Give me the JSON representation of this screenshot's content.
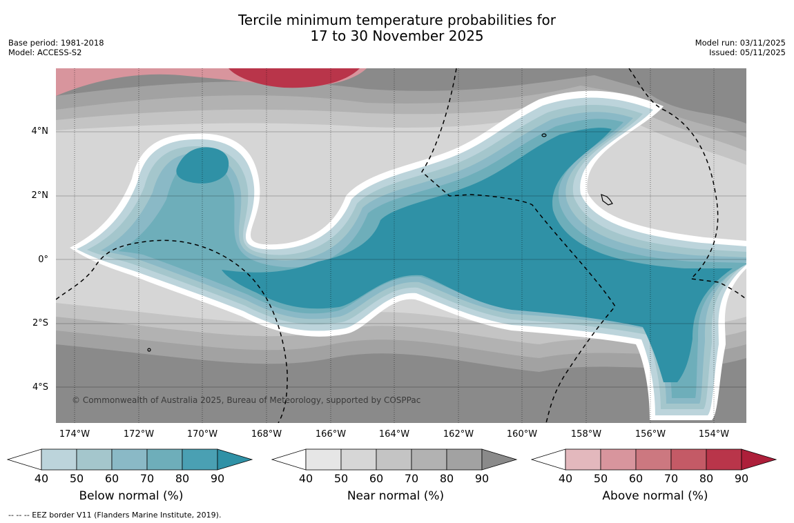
{
  "header": {
    "title_line1": "Tercile minimum temperature probabilities for",
    "title_line2": "17 to 30 November 2025",
    "base_period": "Base period: 1981-2018",
    "model": "Model: ACCESS-S2",
    "model_run": "Model run: 03/11/2025",
    "issued": "Issued: 05/11/2025"
  },
  "map": {
    "y_labels": [
      "4°N",
      "2°N",
      "0°",
      "2°S",
      "4°S"
    ],
    "x_labels": [
      "174°W",
      "172°W",
      "170°W",
      "168°W",
      "166°W",
      "164°W",
      "162°W",
      "160°W",
      "158°W",
      "156°W",
      "154°W"
    ],
    "copyright": "© Commonwealth of Australia 2025, Bureau of Meteorology, supported by COSPPac",
    "background_color": "#8a8a8a"
  },
  "legends": [
    {
      "title": "Below normal (%)",
      "ticks": [
        "40",
        "50",
        "60",
        "70",
        "80",
        "90"
      ],
      "colors": [
        "#ffffff",
        "#bcd4db",
        "#a4c6cc",
        "#8ab9c6",
        "#6eaeba",
        "#4aa0b3",
        "#2f91a6"
      ]
    },
    {
      "title": "Near normal (%)",
      "ticks": [
        "40",
        "50",
        "60",
        "70",
        "80",
        "90"
      ],
      "colors": [
        "#ffffff",
        "#e6e6e6",
        "#d6d6d6",
        "#c4c4c4",
        "#b2b2b2",
        "#a2a2a2",
        "#8a8a8a"
      ]
    },
    {
      "title": "Above normal (%)",
      "ticks": [
        "40",
        "50",
        "60",
        "70",
        "80",
        "90"
      ],
      "colors": [
        "#ffffff",
        "#e3b8bd",
        "#d8959d",
        "#cc7880",
        "#c45a66",
        "#b9354a",
        "#ad1f3a"
      ]
    }
  ],
  "footer": {
    "eez_note": "--  --  -- EEZ border V11 (Flanders Marine Institute, 2019)."
  }
}
